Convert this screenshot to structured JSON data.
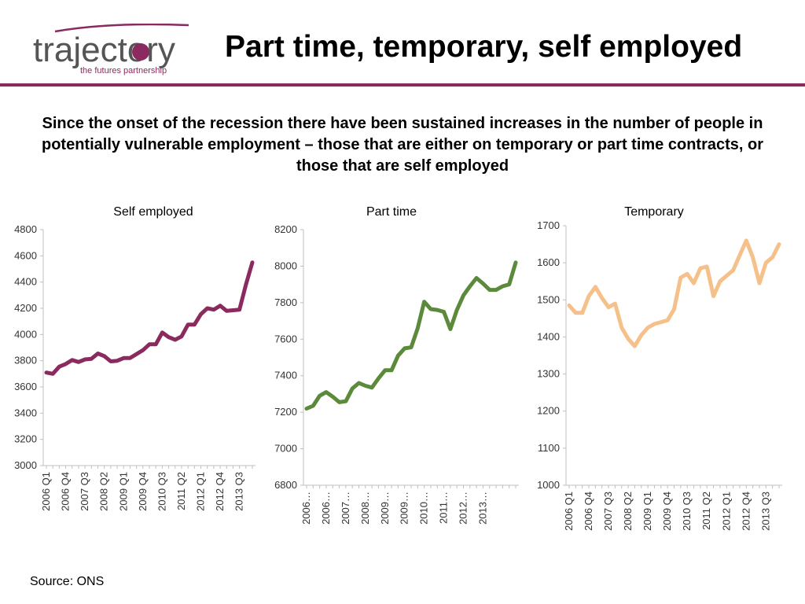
{
  "header": {
    "logo_word": "trajectory",
    "logo_tagline": "the futures partnership",
    "title": "Part time, temporary, self employed"
  },
  "summary": "Since the onset of the recession there have been sustained increases in the number of people in potentially vulnerable employment – those that are either on temporary or part time contracts, or those that are self employed",
  "source": "Source: ONS",
  "colors": {
    "brand": "#8b2a5e",
    "self_employed": "#8b2a5e",
    "part_time": "#5a8a3a",
    "temporary": "#f5c08a"
  },
  "chart_data": [
    {
      "type": "line",
      "title": "Self employed",
      "x_tick_labels": [
        "2006 Q1",
        "2006 Q4",
        "2007 Q3",
        "2008 Q2",
        "2009 Q1",
        "2009 Q4",
        "2010 Q3",
        "2011 Q2",
        "2012 Q1",
        "2012 Q4",
        "2013 Q3"
      ],
      "ylim": [
        3000,
        4800
      ],
      "yticks": [
        3000,
        3200,
        3400,
        3600,
        3800,
        4000,
        4200,
        4400,
        4600,
        4800
      ],
      "values": [
        3710,
        3700,
        3755,
        3775,
        3805,
        3790,
        3810,
        3815,
        3855,
        3835,
        3795,
        3800,
        3820,
        3820,
        3850,
        3880,
        3925,
        3925,
        4015,
        3980,
        3960,
        3985,
        4075,
        4075,
        4155,
        4200,
        4190,
        4220,
        4180,
        4185,
        4190,
        4380,
        4550
      ]
    },
    {
      "type": "line",
      "title": "Part time",
      "x_tick_labels": [
        "2006…",
        "2006…",
        "2007…",
        "2008…",
        "2009…",
        "2009…",
        "2010…",
        "2011…",
        "2012…",
        "2013…"
      ],
      "ylim": [
        6800,
        8200
      ],
      "yticks": [
        6800,
        7000,
        7200,
        7400,
        7600,
        7800,
        8000,
        8200
      ],
      "values": [
        7220,
        7235,
        7290,
        7310,
        7285,
        7255,
        7260,
        7330,
        7360,
        7345,
        7335,
        7385,
        7430,
        7430,
        7510,
        7550,
        7555,
        7660,
        7805,
        7765,
        7760,
        7750,
        7655,
        7760,
        7840,
        7890,
        7935,
        7905,
        7870,
        7870,
        7890,
        7900,
        8020
      ]
    },
    {
      "type": "line",
      "title": "Temporary",
      "x_tick_labels": [
        "2006 Q1",
        "2006 Q4",
        "2007 Q3",
        "2008 Q2",
        "2009 Q1",
        "2009 Q4",
        "2010 Q3",
        "2011 Q2",
        "2012 Q1",
        "2012 Q4",
        "2013 Q3"
      ],
      "ylim": [
        1000,
        1700
      ],
      "yticks": [
        1000,
        1100,
        1200,
        1300,
        1400,
        1500,
        1600,
        1700
      ],
      "values": [
        1485,
        1465,
        1465,
        1510,
        1535,
        1505,
        1480,
        1490,
        1425,
        1395,
        1375,
        1405,
        1425,
        1435,
        1440,
        1445,
        1475,
        1560,
        1570,
        1545,
        1585,
        1590,
        1510,
        1550,
        1565,
        1580,
        1620,
        1660,
        1615,
        1545,
        1600,
        1615,
        1650
      ]
    }
  ]
}
